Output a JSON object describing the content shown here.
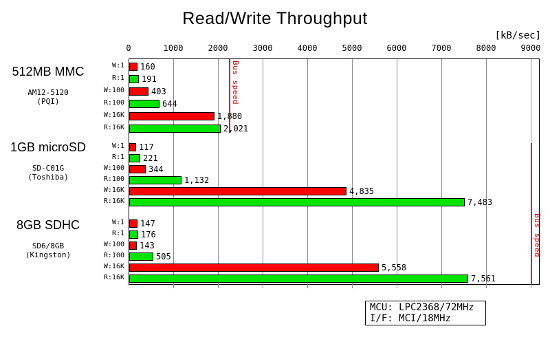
{
  "title": "Read/Write Throughput",
  "unit_label": "[kB/sec]",
  "chart_data": {
    "type": "bar",
    "orientation": "horizontal",
    "title": "Read/Write Throughput",
    "xlabel": "[kB/sec]",
    "xlim": [
      0,
      9000
    ],
    "x_ticks": [
      0,
      1000,
      2000,
      3000,
      4000,
      5000,
      6000,
      7000,
      8000,
      9000
    ],
    "grid": true,
    "row_labels": [
      "W:1",
      "R:1",
      "W:100",
      "R:100",
      "W:16K",
      "R:16K"
    ],
    "write_color": "#ff0000",
    "read_color": "#00e400",
    "groups": [
      {
        "name": "512MB MMC",
        "model": "AM12-5120",
        "vendor": "(PQI)",
        "values": [
          160,
          191,
          403,
          644,
          1880,
          2021
        ]
      },
      {
        "name": "1GB microSD",
        "model": "SD-C01G",
        "vendor": "(Toshiba)",
        "values": [
          117,
          221,
          344,
          1132,
          4835,
          7483
        ]
      },
      {
        "name": "8GB SDHC",
        "model": "SD6/8GB",
        "vendor": "(Kingston)",
        "values": [
          147,
          176,
          143,
          505,
          5558,
          7561
        ]
      }
    ],
    "bus_speed_lines": [
      {
        "label": "Bus speed",
        "value": 2250,
        "spans_groups": [
          0
        ]
      },
      {
        "label": "Bus speed",
        "value": 9000,
        "spans_groups": [
          1,
          2
        ]
      }
    ]
  },
  "info_box": {
    "lines": [
      "MCU: LPC2368/72MHz",
      "I/F: MCI/18MHz"
    ]
  }
}
